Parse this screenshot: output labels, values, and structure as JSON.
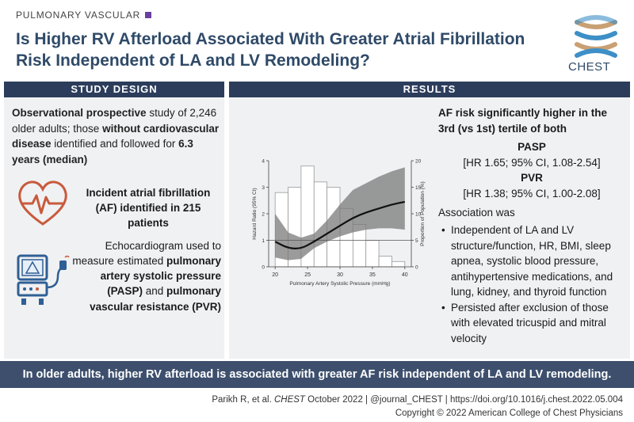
{
  "header": {
    "category": "PULMONARY VASCULAR",
    "title": "Is Higher RV Afterload Associated With Greater Atrial Fibrillation Risk Independent of LA and LV Remodeling?",
    "logo_text": "CHEST"
  },
  "study_design": {
    "label": "STUDY DESIGN",
    "intro_bold1": "Observational prospective",
    "intro_text1": " study of 2,246 older adults; those ",
    "intro_bold2": "without cardiovascular disease",
    "intro_text2": " identified and followed for ",
    "intro_bold3": "6.3 years (median)",
    "af_text": "Incident atrial fibrillation (AF) identified in 215 patients",
    "echo_text1": "Echocardiogram used to measure estimated ",
    "echo_bold1": "pulmonary artery systolic pressure (PASP)",
    "echo_text2": " and ",
    "echo_bold2": "pulmonary vascular resistance (PVR)"
  },
  "results": {
    "label": "RESULTS",
    "headline": "AF risk significantly higher in the 3rd (vs 1st) tertile of both",
    "pasp_label": "PASP",
    "pasp_value": "[HR 1.65; 95% CI, 1.08-2.54]",
    "pvr_label": "PVR",
    "pvr_value": "[HR 1.38; 95% CI, 1.00-2.08]",
    "association_label": "Association was",
    "bullets": [
      "Independent of LA and LV structure/function, HR, BMI, sleep apnea, systolic blood pressure, antihypertensive medications, and lung, kidney, and thyroid function",
      "Persisted after exclusion of those with elevated tricuspid and mitral velocity"
    ]
  },
  "chart_data": {
    "type": "line",
    "xlabel": "Pulmonary Artery Systolic Pressure (mmHg)",
    "ylabel": "Hazard Ratio (95% CI)",
    "y2label": "Proportion of Population (%)",
    "xlim": [
      19,
      41
    ],
    "ylim": [
      0,
      4
    ],
    "y2lim": [
      0,
      20
    ],
    "xticks": [
      "20",
      "25",
      "30",
      "35",
      "40"
    ],
    "yticks": [
      "0",
      "1",
      "2",
      "3",
      "4"
    ],
    "y2ticks": [
      "0",
      "5",
      "10",
      "15",
      "20"
    ],
    "reference_line_y": 1,
    "histogram": {
      "bin_edges": [
        20,
        22,
        24,
        26,
        28,
        30,
        32,
        34,
        36,
        38,
        40
      ],
      "values": [
        14,
        15,
        19,
        16,
        15,
        11,
        8,
        5,
        2,
        1
      ]
    },
    "hr_curve": {
      "x": [
        20,
        22,
        24,
        26,
        28,
        30,
        32,
        34,
        36,
        38,
        40
      ],
      "y": [
        0.95,
        0.7,
        0.68,
        0.95,
        1.25,
        1.55,
        1.85,
        2.05,
        2.2,
        2.35,
        2.45
      ],
      "lower": [
        0.35,
        0.25,
        0.3,
        0.7,
        0.95,
        1.15,
        1.3,
        1.4,
        1.45,
        1.45,
        1.4
      ],
      "upper": [
        2.0,
        1.3,
        1.1,
        1.25,
        1.75,
        2.35,
        2.9,
        3.15,
        3.4,
        3.6,
        3.75
      ]
    }
  },
  "banner": {
    "text": "In older adults, higher RV afterload is associated with greater AF risk independent of LA and LV remodeling."
  },
  "citation": {
    "authors": "Parikh R, et al. ",
    "journal": "CHEST",
    "rest": " October 2022  |  @journal_CHEST  |  https://doi.org/10.1016/j.chest.2022.05.004",
    "copyright": "Copyright © 2022 American College of Chest Physicians"
  }
}
